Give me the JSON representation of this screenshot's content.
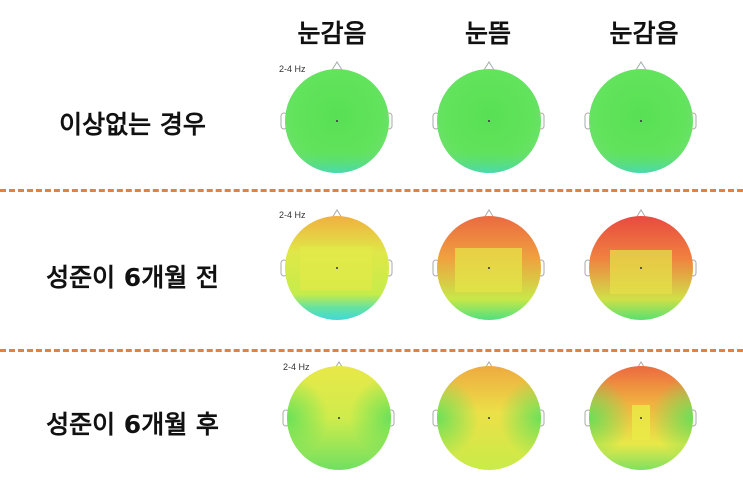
{
  "columns": [
    "눈감음",
    "눈뜸",
    "눈감음"
  ],
  "rows": [
    {
      "label": "이상없는 경우",
      "freq": "2-4 Hz"
    },
    {
      "label": "성준이 6개월 전",
      "freq": "2-4 Hz"
    },
    {
      "label": "성준이 6개월 후",
      "freq": "2-4 Hz"
    }
  ],
  "colors": {
    "divider": "#e8803a",
    "green": "#5fe05a",
    "yellow": "#e6ec4a",
    "orange": "#f0a040",
    "red": "#ee5540",
    "cyan": "#4de8c0"
  }
}
